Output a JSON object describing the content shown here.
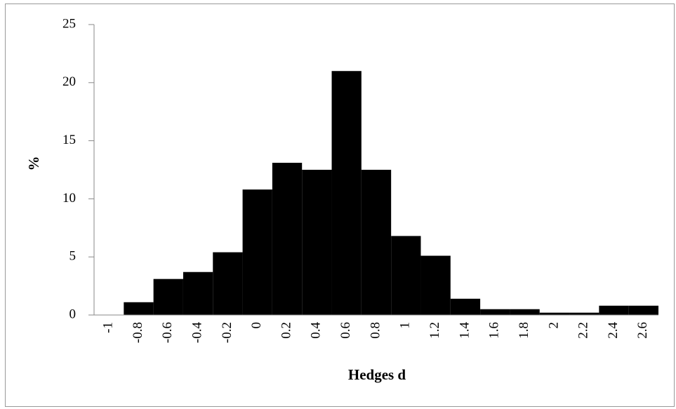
{
  "chart_data": {
    "type": "bar",
    "x_label": "Hedges d",
    "y_label": "%",
    "categories": [
      "-1",
      "-0.8",
      "-0.6",
      "-0.4",
      "-0.2",
      "0",
      "0.2",
      "0.4",
      "0.6",
      "0.8",
      "1",
      "1.2",
      "1.4",
      "1.6",
      "1.8",
      "2",
      "2.2",
      "2.4",
      "2.6"
    ],
    "values": [
      0,
      1.1,
      3.1,
      3.7,
      5.4,
      10.8,
      13.1,
      12.5,
      21,
      12.5,
      6.8,
      5.1,
      1.4,
      0.5,
      0.5,
      0.2,
      0.2,
      0.8,
      0.8
    ],
    "color": "#000000",
    "ylim": [
      0,
      25
    ],
    "yticks": [
      0,
      5,
      10,
      15,
      20,
      25
    ],
    "grid": false
  }
}
